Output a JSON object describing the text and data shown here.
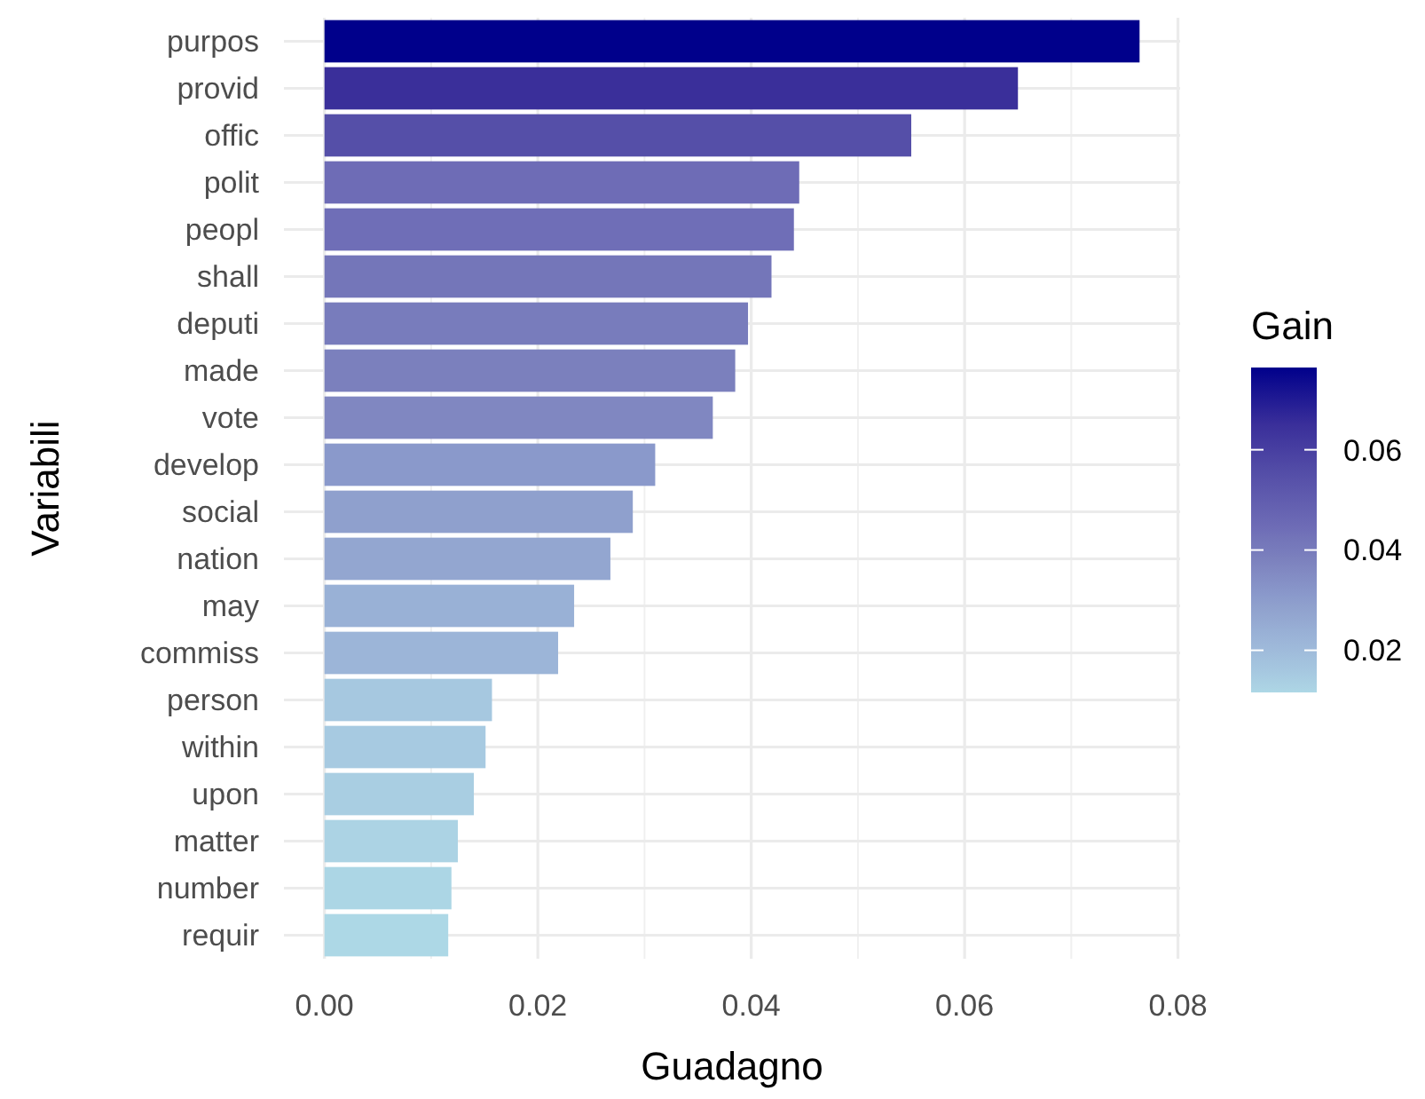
{
  "chart_data": {
    "type": "bar",
    "orientation": "horizontal",
    "xlabel": "Guadagno",
    "ylabel": "Variabili",
    "clabel": "Gain",
    "categories": [
      "purpos",
      "provid",
      "offic",
      "polit",
      "peopl",
      "shall",
      "deputi",
      "made",
      "vote",
      "develop",
      "social",
      "nation",
      "may",
      "commiss",
      "person",
      "within",
      "upon",
      "matter",
      "number",
      "requir"
    ],
    "values": [
      0.0764,
      0.065,
      0.055,
      0.0445,
      0.044,
      0.0419,
      0.0397,
      0.0385,
      0.0364,
      0.031,
      0.0289,
      0.0268,
      0.0234,
      0.0219,
      0.0157,
      0.0151,
      0.014,
      0.0125,
      0.0119,
      0.0116
    ],
    "colors": [
      "#00008b",
      "#3a2f9a",
      "#554fa8",
      "#6e6cb6",
      "#6f6eb7",
      "#7476b9",
      "#787cbc",
      "#7b80bd",
      "#8087c1",
      "#8a99cb",
      "#8fa0cd",
      "#93a6d0",
      "#99b1d6",
      "#9cb5d8",
      "#a6c8e0",
      "#a7cae1",
      "#a9cee2",
      "#acd3e4",
      "#acd6e5",
      "#add8e6"
    ],
    "xlim": [
      -0.0038,
      0.0802
    ],
    "xticks": [
      {
        "value": 0,
        "label": "0.00"
      },
      {
        "value": 0.02,
        "label": "0.02"
      },
      {
        "value": 0.04,
        "label": "0.04"
      },
      {
        "value": 0.06,
        "label": "0.06"
      },
      {
        "value": 0.08,
        "label": "0.08"
      }
    ],
    "clim": [
      0.0116,
      0.0764
    ],
    "cticks": [
      {
        "value": 0.02,
        "label": "0.02"
      },
      {
        "value": 0.04,
        "label": "0.04"
      },
      {
        "value": 0.06,
        "label": "0.06"
      }
    ],
    "grid": true
  }
}
